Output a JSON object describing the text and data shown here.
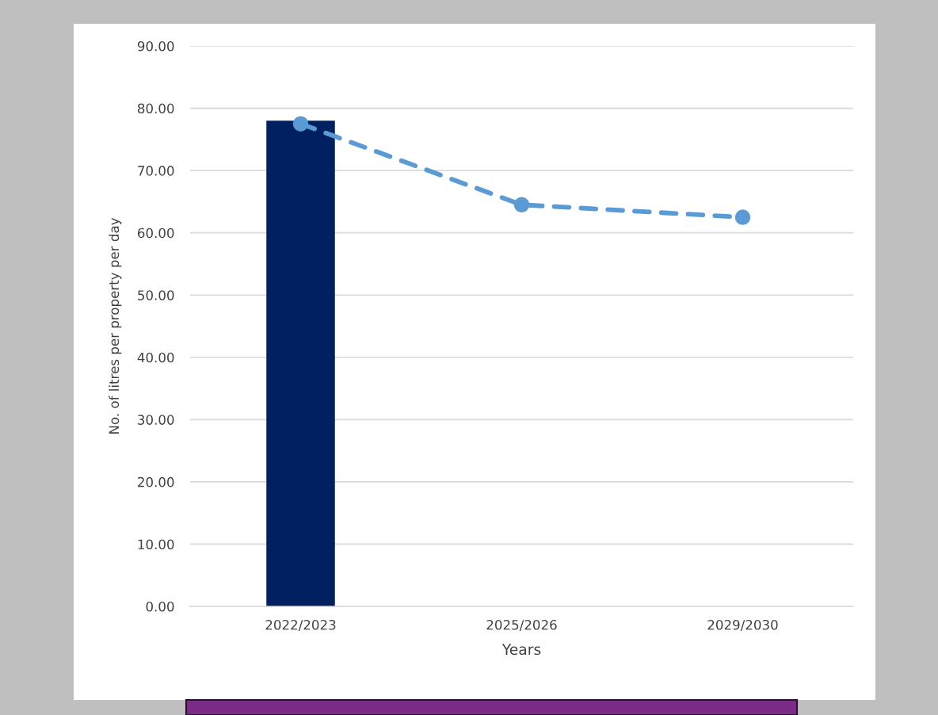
{
  "chart_data": {
    "type": "bar",
    "xlabel": "Years",
    "ylabel": "No. of litres per property per day",
    "categories": [
      "2022/2023",
      "2025/2026",
      "2029/2030"
    ],
    "series": [
      {
        "color": "#002060",
        "values": [
          78,
          null,
          null
        ]
      },
      {
        "type": "line",
        "color": "#5b9bd5",
        "values": [
          77.5,
          64.5,
          62.5
        ]
      }
    ],
    "marker": "circle",
    "line_style": "dashed",
    "ylim": [
      0,
      90
    ],
    "yticks": [
      {
        "value": 0,
        "label": "0.00"
      },
      {
        "value": 10,
        "label": "10.00"
      },
      {
        "value": 20,
        "label": "20.00"
      },
      {
        "value": 30,
        "label": "30.00"
      },
      {
        "value": 40,
        "label": "40.00"
      },
      {
        "value": 50,
        "label": "50.00"
      },
      {
        "value": 60,
        "label": "60.00"
      },
      {
        "value": 70,
        "label": "70.00"
      },
      {
        "value": 80,
        "label": "80.00"
      },
      {
        "value": 90,
        "label": "90.00"
      }
    ],
    "grid": "y"
  }
}
